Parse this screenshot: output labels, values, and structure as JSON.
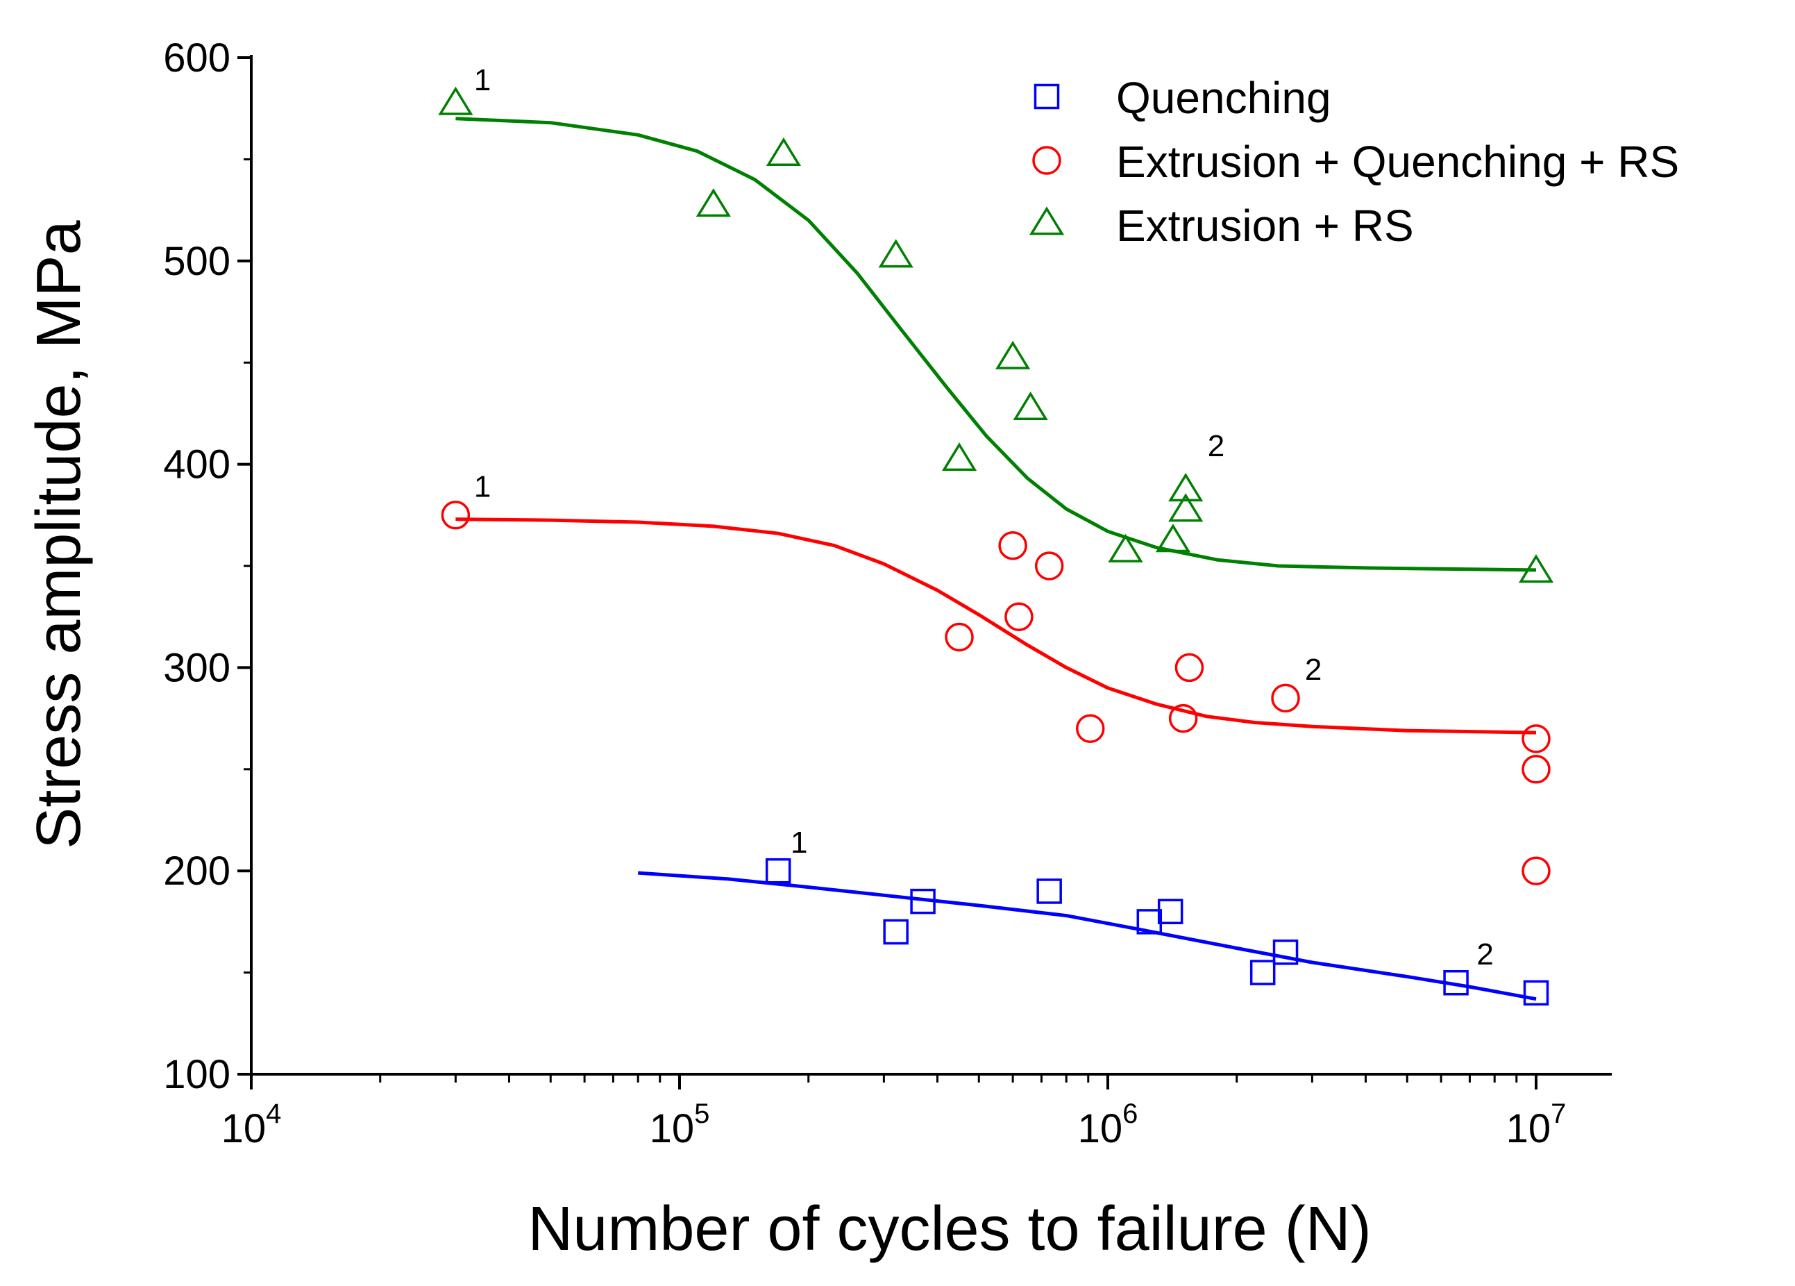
{
  "chart_data": {
    "type": "scatter",
    "xlabel": "Number of cycles to failure (N)",
    "ylabel": "Stress amplitude, MPa",
    "xscale": "log",
    "xlim": [
      10000,
      15000000
    ],
    "ylim": [
      100,
      600
    ],
    "x_ticks": [
      {
        "base": "10",
        "exp": "4"
      },
      {
        "base": "10",
        "exp": "5"
      },
      {
        "base": "10",
        "exp": "6"
      },
      {
        "base": "10",
        "exp": "7"
      }
    ],
    "y_ticks": [
      "100",
      "200",
      "300",
      "400",
      "500",
      "600"
    ],
    "legend_position": "top-right",
    "series": [
      {
        "name": "Quenching",
        "marker": "square",
        "color": "#0000ff",
        "points": [
          [
            170000,
            200
          ],
          [
            320000,
            170
          ],
          [
            370000,
            185
          ],
          [
            730000,
            190
          ],
          [
            1250000,
            175
          ],
          [
            1400000,
            180
          ],
          [
            2300000,
            150
          ],
          [
            2600000,
            160
          ],
          [
            6500000,
            145
          ],
          [
            10000000,
            140
          ]
        ],
        "fit": [
          [
            80000,
            199
          ],
          [
            130000,
            196
          ],
          [
            200000,
            192
          ],
          [
            300000,
            188
          ],
          [
            500000,
            183
          ],
          [
            800000,
            178
          ],
          [
            1200000,
            171
          ],
          [
            2000000,
            162
          ],
          [
            3000000,
            155
          ],
          [
            5000000,
            148
          ],
          [
            7000000,
            143
          ],
          [
            10000000,
            137
          ]
        ],
        "annotations": [
          {
            "text": "1",
            "x": 170000,
            "y": 209
          },
          {
            "text": "2",
            "x": 6800000,
            "y": 154
          }
        ]
      },
      {
        "name": "Extrusion + Quenching + RS",
        "marker": "circle",
        "color": "#ff0000",
        "points": [
          [
            30000,
            375
          ],
          [
            450000,
            315
          ],
          [
            600000,
            360
          ],
          [
            620000,
            325
          ],
          [
            730000,
            350
          ],
          [
            910000,
            270
          ],
          [
            1500000,
            275
          ],
          [
            1550000,
            300
          ],
          [
            2600000,
            285
          ],
          [
            10000000,
            265
          ],
          [
            10000000,
            250
          ],
          [
            10000000,
            200
          ]
        ],
        "fit": [
          [
            30000,
            373
          ],
          [
            50000,
            372.5
          ],
          [
            80000,
            371.5
          ],
          [
            120000,
            369.5
          ],
          [
            170000,
            366
          ],
          [
            230000,
            360
          ],
          [
            300000,
            351
          ],
          [
            400000,
            338
          ],
          [
            500000,
            326
          ],
          [
            650000,
            311
          ],
          [
            800000,
            300
          ],
          [
            1000000,
            290
          ],
          [
            1300000,
            282
          ],
          [
            1700000,
            276
          ],
          [
            2200000,
            273
          ],
          [
            3000000,
            271
          ],
          [
            5000000,
            269
          ],
          [
            10000000,
            268
          ]
        ],
        "annotations": [
          {
            "text": "1",
            "x": 31000,
            "y": 384
          },
          {
            "text": "2",
            "x": 2700000,
            "y": 294
          }
        ]
      },
      {
        "name": "Extrusion + RS",
        "marker": "triangle",
        "color": "#008000",
        "points": [
          [
            30000,
            577
          ],
          [
            120000,
            527
          ],
          [
            175000,
            552
          ],
          [
            320000,
            502
          ],
          [
            450000,
            402
          ],
          [
            600000,
            452
          ],
          [
            660000,
            427
          ],
          [
            1100000,
            357
          ],
          [
            1420000,
            362
          ],
          [
            1520000,
            377
          ],
          [
            1520000,
            387
          ],
          [
            10000000,
            347
          ]
        ],
        "fit": [
          [
            30000,
            570
          ],
          [
            50000,
            568
          ],
          [
            80000,
            562
          ],
          [
            110000,
            554
          ],
          [
            150000,
            540
          ],
          [
            200000,
            520
          ],
          [
            260000,
            494
          ],
          [
            330000,
            466
          ],
          [
            420000,
            438
          ],
          [
            520000,
            414
          ],
          [
            650000,
            393
          ],
          [
            800000,
            378
          ],
          [
            1000000,
            367
          ],
          [
            1300000,
            359
          ],
          [
            1800000,
            353
          ],
          [
            2500000,
            350
          ],
          [
            4000000,
            349
          ],
          [
            10000000,
            348
          ]
        ],
        "annotations": [
          {
            "text": "1",
            "x": 31000,
            "y": 584
          },
          {
            "text": "2",
            "x": 1600000,
            "y": 404
          }
        ]
      }
    ]
  }
}
